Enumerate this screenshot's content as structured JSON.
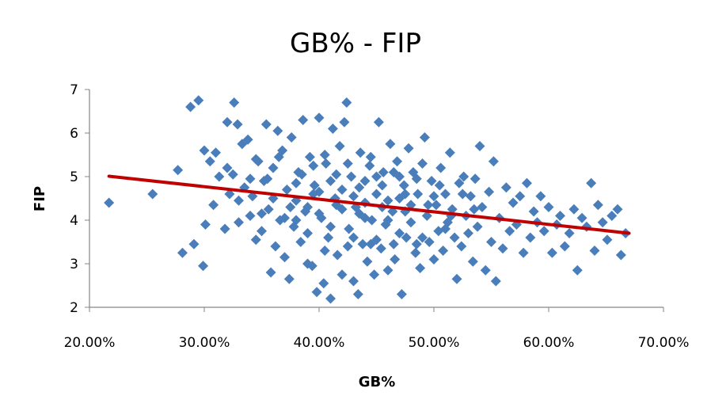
{
  "chart_data": {
    "type": "scatter",
    "title": "GB% - FIP",
    "xlabel": "GB%",
    "ylabel": "FIP",
    "xlim": [
      0.2,
      0.7
    ],
    "ylim": [
      2,
      7
    ],
    "xticks": [
      0.2,
      0.3,
      0.4,
      0.5,
      0.6,
      0.7
    ],
    "xtick_labels": [
      "20.00%",
      "30.00%",
      "40.00%",
      "50.00%",
      "60.00%",
      "70.00%"
    ],
    "yticks": [
      2,
      3,
      4,
      5,
      6,
      7
    ],
    "ytick_labels": [
      "2",
      "3",
      "4",
      "5",
      "6",
      "7"
    ],
    "grid": false,
    "legend": "none",
    "colors": {
      "points": "#4a7ebb",
      "trendline": "#c00000",
      "axis": "#868686"
    },
    "trendline": {
      "type": "linear",
      "x": [
        0.217,
        0.67
      ],
      "y": [
        5.01,
        3.7
      ]
    },
    "series": [
      {
        "points": [
          [
            0.217,
            4.4
          ],
          [
            0.255,
            4.6
          ],
          [
            0.277,
            5.15
          ],
          [
            0.281,
            3.25
          ],
          [
            0.288,
            6.6
          ],
          [
            0.291,
            3.45
          ],
          [
            0.295,
            6.75
          ],
          [
            0.299,
            2.95
          ],
          [
            0.3,
            5.6
          ],
          [
            0.301,
            3.9
          ],
          [
            0.305,
            5.35
          ],
          [
            0.308,
            4.35
          ],
          [
            0.31,
            5.55
          ],
          [
            0.313,
            5.0
          ],
          [
            0.318,
            3.8
          ],
          [
            0.32,
            6.25
          ],
          [
            0.322,
            4.6
          ],
          [
            0.325,
            5.05
          ],
          [
            0.326,
            6.7
          ],
          [
            0.329,
            6.2
          ],
          [
            0.33,
            3.95
          ],
          [
            0.333,
            5.75
          ],
          [
            0.335,
            4.75
          ],
          [
            0.338,
            5.85
          ],
          [
            0.34,
            4.1
          ],
          [
            0.342,
            4.55
          ],
          [
            0.345,
            3.55
          ],
          [
            0.347,
            5.35
          ],
          [
            0.35,
            3.75
          ],
          [
            0.352,
            4.9
          ],
          [
            0.354,
            6.2
          ],
          [
            0.356,
            4.25
          ],
          [
            0.358,
            2.8
          ],
          [
            0.36,
            5.2
          ],
          [
            0.362,
            3.4
          ],
          [
            0.364,
            6.05
          ],
          [
            0.366,
            4.0
          ],
          [
            0.368,
            5.6
          ],
          [
            0.37,
            3.15
          ],
          [
            0.372,
            4.7
          ],
          [
            0.374,
            2.65
          ],
          [
            0.376,
            5.9
          ],
          [
            0.378,
            3.85
          ],
          [
            0.38,
            4.45
          ],
          [
            0.382,
            5.1
          ],
          [
            0.384,
            3.5
          ],
          [
            0.386,
            6.3
          ],
          [
            0.388,
            4.2
          ],
          [
            0.39,
            3.0
          ],
          [
            0.392,
            5.45
          ],
          [
            0.394,
            2.95
          ],
          [
            0.396,
            4.8
          ],
          [
            0.398,
            2.35
          ],
          [
            0.4,
            6.35
          ],
          [
            0.402,
            4.05
          ],
          [
            0.404,
            2.55
          ],
          [
            0.406,
            5.3
          ],
          [
            0.408,
            3.6
          ],
          [
            0.41,
            2.2
          ],
          [
            0.412,
            6.1
          ],
          [
            0.414,
            4.5
          ],
          [
            0.416,
            3.2
          ],
          [
            0.418,
            5.7
          ],
          [
            0.42,
            2.75
          ],
          [
            0.422,
            6.25
          ],
          [
            0.424,
            6.7
          ],
          [
            0.426,
            3.8
          ],
          [
            0.428,
            5.0
          ],
          [
            0.43,
            2.6
          ],
          [
            0.432,
            4.3
          ],
          [
            0.434,
            2.3
          ],
          [
            0.436,
            5.55
          ],
          [
            0.438,
            3.45
          ],
          [
            0.44,
            4.9
          ],
          [
            0.442,
            3.05
          ],
          [
            0.444,
            5.25
          ],
          [
            0.446,
            4.0
          ],
          [
            0.448,
            2.75
          ],
          [
            0.45,
            4.6
          ],
          [
            0.452,
            6.25
          ],
          [
            0.454,
            3.35
          ],
          [
            0.456,
            5.1
          ],
          [
            0.458,
            3.9
          ],
          [
            0.46,
            2.85
          ],
          [
            0.462,
            5.75
          ],
          [
            0.464,
            4.2
          ],
          [
            0.466,
            3.1
          ],
          [
            0.468,
            5.35
          ],
          [
            0.47,
            4.5
          ],
          [
            0.472,
            2.3
          ],
          [
            0.474,
            4.8
          ],
          [
            0.476,
            3.6
          ],
          [
            0.478,
            5.65
          ],
          [
            0.48,
            3.95
          ],
          [
            0.482,
            5.1
          ],
          [
            0.484,
            3.25
          ],
          [
            0.486,
            4.6
          ],
          [
            0.488,
            2.9
          ],
          [
            0.49,
            5.3
          ],
          [
            0.492,
            5.9
          ],
          [
            0.494,
            4.1
          ],
          [
            0.496,
            3.5
          ],
          [
            0.498,
            4.9
          ],
          [
            0.5,
            3.1
          ],
          [
            0.502,
            4.35
          ],
          [
            0.504,
            3.75
          ],
          [
            0.506,
            5.2
          ],
          [
            0.508,
            3.3
          ],
          [
            0.51,
            4.6
          ],
          [
            0.512,
            3.95
          ],
          [
            0.514,
            5.55
          ],
          [
            0.516,
            4.25
          ],
          [
            0.518,
            3.6
          ],
          [
            0.52,
            2.65
          ],
          [
            0.522,
            4.85
          ],
          [
            0.524,
            3.4
          ],
          [
            0.526,
            5.0
          ],
          [
            0.528,
            4.1
          ],
          [
            0.53,
            3.7
          ],
          [
            0.532,
            4.55
          ],
          [
            0.534,
            3.05
          ],
          [
            0.536,
            4.95
          ],
          [
            0.538,
            3.85
          ],
          [
            0.54,
            5.7
          ],
          [
            0.542,
            4.3
          ],
          [
            0.545,
            2.85
          ],
          [
            0.548,
            4.65
          ],
          [
            0.55,
            3.5
          ],
          [
            0.552,
            5.35
          ],
          [
            0.554,
            2.6
          ],
          [
            0.557,
            4.05
          ],
          [
            0.56,
            3.35
          ],
          [
            0.563,
            4.75
          ],
          [
            0.566,
            3.75
          ],
          [
            0.569,
            4.4
          ],
          [
            0.572,
            3.9
          ],
          [
            0.575,
            4.55
          ],
          [
            0.578,
            3.25
          ],
          [
            0.581,
            4.85
          ],
          [
            0.584,
            3.6
          ],
          [
            0.587,
            4.2
          ],
          [
            0.59,
            3.95
          ],
          [
            0.593,
            4.55
          ],
          [
            0.596,
            3.75
          ],
          [
            0.6,
            4.3
          ],
          [
            0.603,
            3.25
          ],
          [
            0.607,
            3.9
          ],
          [
            0.61,
            4.1
          ],
          [
            0.614,
            3.4
          ],
          [
            0.618,
            3.7
          ],
          [
            0.622,
            4.25
          ],
          [
            0.625,
            2.85
          ],
          [
            0.629,
            4.05
          ],
          [
            0.633,
            3.85
          ],
          [
            0.637,
            4.85
          ],
          [
            0.64,
            3.3
          ],
          [
            0.643,
            4.35
          ],
          [
            0.647,
            3.95
          ],
          [
            0.651,
            3.55
          ],
          [
            0.655,
            4.1
          ],
          [
            0.66,
            4.25
          ],
          [
            0.663,
            3.2
          ],
          [
            0.667,
            3.7
          ],
          [
            0.345,
            5.4
          ],
          [
            0.355,
            4.95
          ],
          [
            0.365,
            5.45
          ],
          [
            0.375,
            4.3
          ],
          [
            0.385,
            5.05
          ],
          [
            0.395,
            4.6
          ],
          [
            0.405,
            5.5
          ],
          [
            0.415,
            4.35
          ],
          [
            0.425,
            5.3
          ],
          [
            0.435,
            4.15
          ],
          [
            0.445,
            5.45
          ],
          [
            0.455,
            4.3
          ],
          [
            0.465,
            5.1
          ],
          [
            0.475,
            4.2
          ],
          [
            0.485,
            4.95
          ],
          [
            0.495,
            4.35
          ],
          [
            0.505,
            4.8
          ],
          [
            0.515,
            4.1
          ],
          [
            0.525,
            4.6
          ],
          [
            0.535,
            4.25
          ],
          [
            0.36,
            4.5
          ],
          [
            0.37,
            4.05
          ],
          [
            0.38,
            4.85
          ],
          [
            0.39,
            3.7
          ],
          [
            0.4,
            4.65
          ],
          [
            0.41,
            3.85
          ],
          [
            0.42,
            4.7
          ],
          [
            0.43,
            3.6
          ],
          [
            0.44,
            4.4
          ],
          [
            0.45,
            3.55
          ],
          [
            0.46,
            4.45
          ],
          [
            0.47,
            3.7
          ],
          [
            0.48,
            4.35
          ],
          [
            0.49,
            3.6
          ],
          [
            0.5,
            4.55
          ],
          [
            0.51,
            3.8
          ],
          [
            0.35,
            4.15
          ],
          [
            0.34,
            4.95
          ],
          [
            0.33,
            4.45
          ],
          [
            0.32,
            5.2
          ],
          [
            0.395,
            5.25
          ],
          [
            0.405,
            3.3
          ],
          [
            0.415,
            5.05
          ],
          [
            0.425,
            3.4
          ],
          [
            0.435,
            4.75
          ],
          [
            0.445,
            3.45
          ],
          [
            0.455,
            4.8
          ],
          [
            0.465,
            3.45
          ],
          [
            0.475,
            4.6
          ],
          [
            0.485,
            3.45
          ],
          [
            0.4,
            4.15
          ],
          [
            0.42,
            4.25
          ],
          [
            0.44,
            4.05
          ],
          [
            0.46,
            4.0
          ],
          [
            0.38,
            4.0
          ],
          [
            0.43,
            4.55
          ],
          [
            0.45,
            5.0
          ],
          [
            0.41,
            4.9
          ],
          [
            0.47,
            5.0
          ],
          [
            0.39,
            4.3
          ]
        ]
      }
    ]
  }
}
